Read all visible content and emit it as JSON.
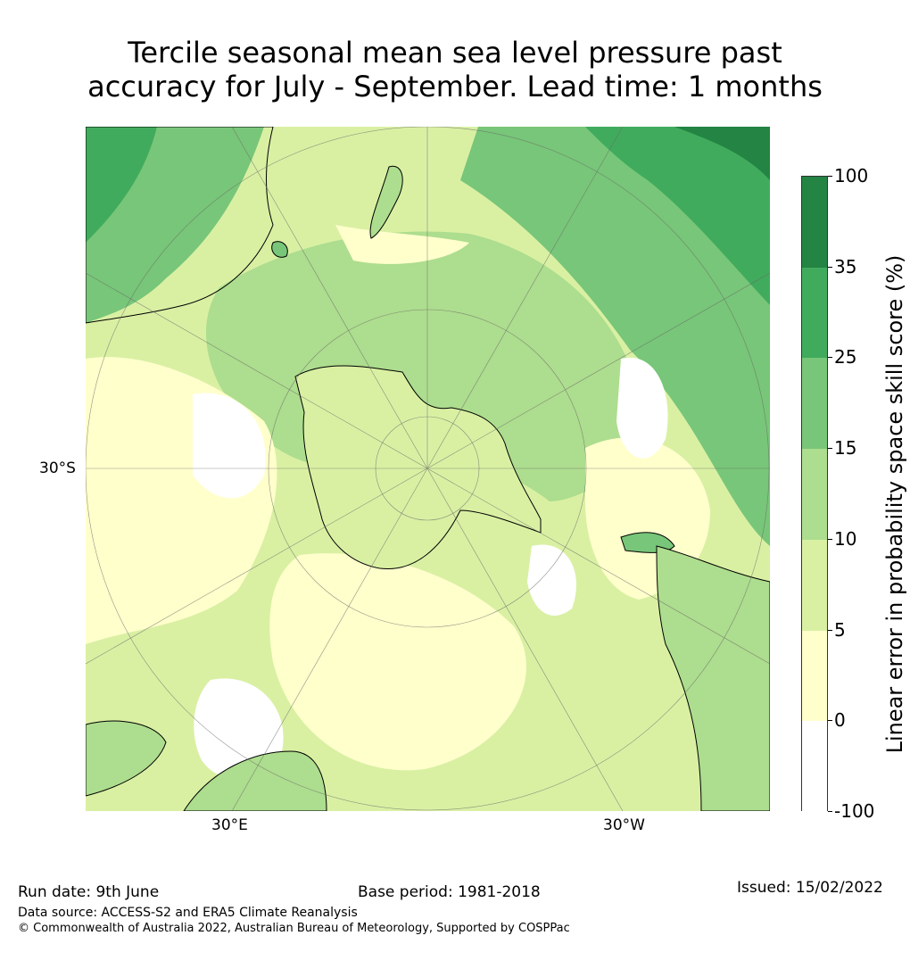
{
  "title_line1": "Tercile seasonal mean sea level pressure past",
  "title_line2": "accuracy for July - September. Lead time: 1 months",
  "map_labels": {
    "lat_30s": "30°S",
    "lon_30e": "30°E",
    "lon_30w": "30°W"
  },
  "colorbar": {
    "label": "Linear error in probability space skill score (%)",
    "ticks": [
      "100",
      "35",
      "25",
      "15",
      "10",
      "5",
      "0",
      "-100"
    ],
    "colors": [
      "#238443",
      "#41ab5d",
      "#78c679",
      "#addd8e",
      "#d9f0a3",
      "#ffffcc",
      "#ffffff"
    ]
  },
  "footer": {
    "run_date": "Run date: 9th June",
    "base_period": "Base period: 1981-2018",
    "issued": "Issued: 15/02/2022",
    "data_source": "Data source: ACCESS-S2 and ERA5 Climate Reanalysis",
    "copyright": "© Commonwealth of Australia 2022, Australian Bureau of Meteorology, Supported by COSPPac"
  }
}
